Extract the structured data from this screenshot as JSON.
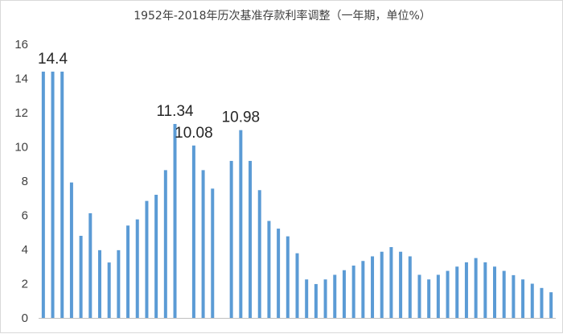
{
  "chart_data": {
    "type": "bar",
    "title": "1952年-2018年历次基准存款利率调整（一年期，单位%）",
    "xlabel": "",
    "ylabel": "",
    "ylim": [
      0,
      16
    ],
    "yticks": [
      "0",
      "2",
      "4",
      "6",
      "8",
      "10",
      "12",
      "14",
      "16"
    ],
    "grid": false,
    "legend": "none",
    "bar_color": "#5b9bd5",
    "values": [
      14.4,
      14.4,
      14.4,
      7.92,
      4.8,
      6.12,
      3.96,
      3.24,
      3.96,
      5.4,
      5.76,
      6.84,
      7.2,
      8.64,
      11.34,
      null,
      10.08,
      8.64,
      7.56,
      null,
      9.18,
      10.98,
      9.18,
      7.47,
      5.67,
      5.22,
      4.77,
      3.78,
      2.25,
      1.98,
      2.25,
      2.52,
      2.79,
      3.06,
      3.33,
      3.6,
      3.87,
      4.14,
      3.87,
      3.6,
      2.52,
      2.25,
      2.52,
      2.75,
      3.0,
      3.25,
      3.5,
      3.25,
      3.0,
      2.75,
      2.5,
      2.25,
      2.0,
      1.75,
      1.5
    ],
    "data_labels": [
      {
        "index": 1,
        "text": "14.4"
      },
      {
        "index": 14,
        "text": "11.34"
      },
      {
        "index": 16,
        "text": "10.08"
      },
      {
        "index": 21,
        "text": "10.98"
      }
    ]
  }
}
